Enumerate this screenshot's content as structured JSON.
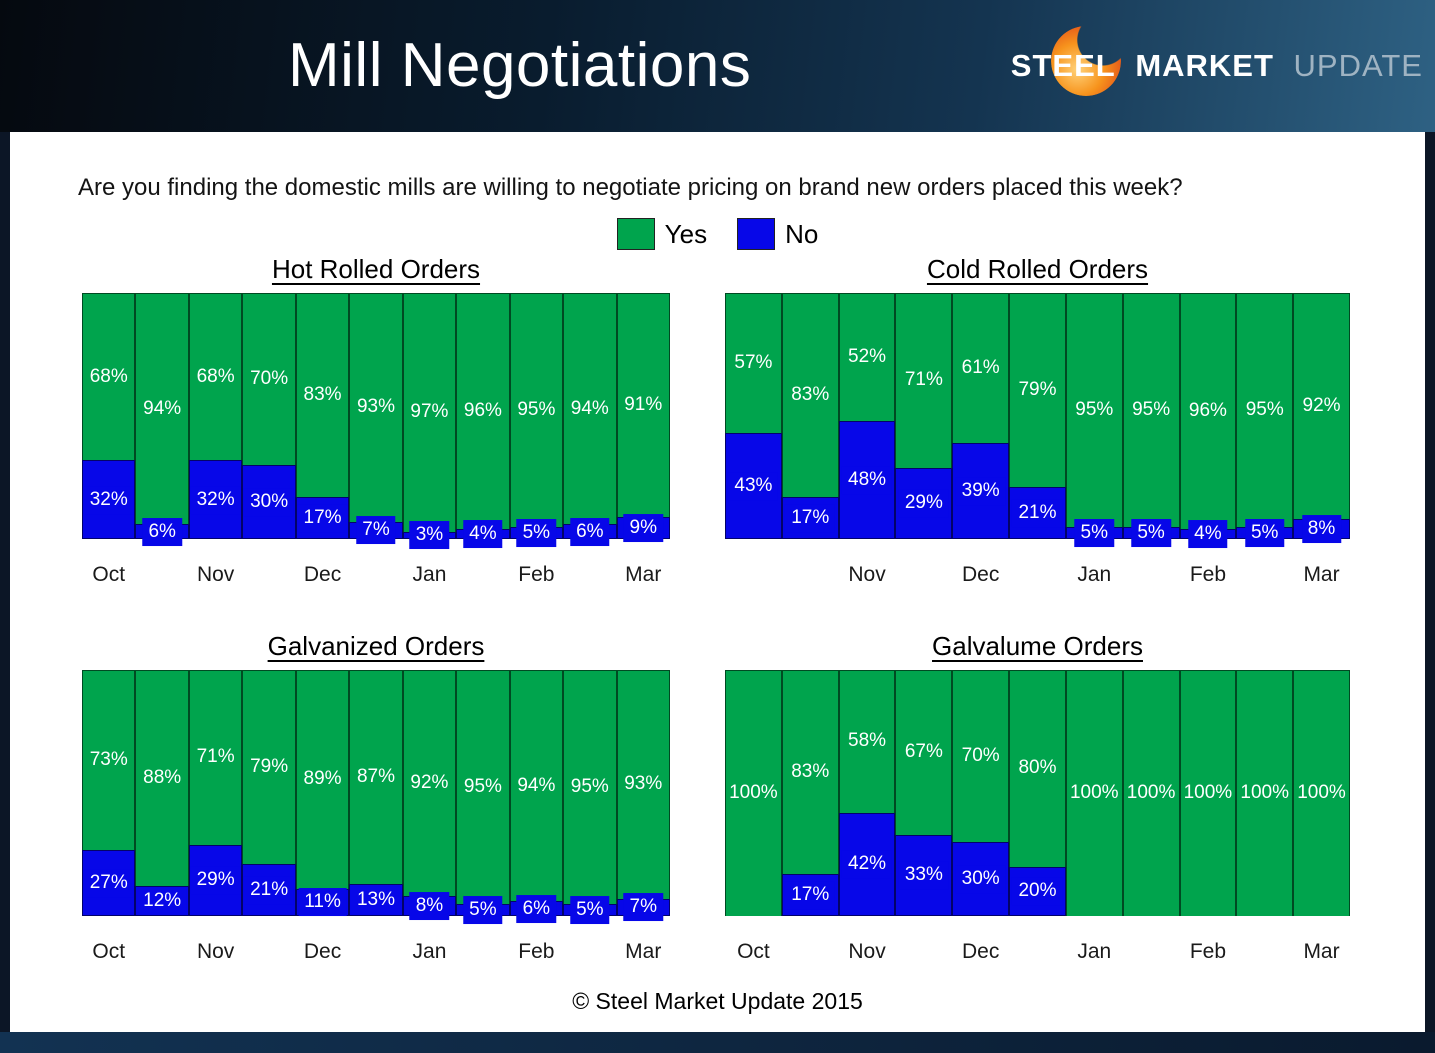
{
  "header": {
    "title": "Mill Negotiations",
    "logo": {
      "steel": "STEEL",
      "market": "MARKET",
      "update": "UPDATE"
    }
  },
  "question": "Are you finding the domestic mills are willing to negotiate pricing on brand new orders placed this week?",
  "legend": {
    "yes_label": "Yes",
    "no_label": "No"
  },
  "colors": {
    "yes": "#00a44d",
    "no": "#0707e8"
  },
  "footer": "© Steel Market Update 2015",
  "chart_data": [
    {
      "type": "bar",
      "stacked": true,
      "title": "Hot Rolled Orders",
      "unit": "%",
      "ylim": [
        0,
        100
      ],
      "grid": false,
      "legend_position": "top-shared",
      "categories": [
        "Oct",
        "",
        "Nov",
        "",
        "Dec",
        "",
        "Jan",
        "",
        "Feb",
        "",
        "Mar"
      ],
      "series": [
        {
          "name": "Yes",
          "color": "#00a44d",
          "values": [
            68,
            94,
            68,
            70,
            83,
            93,
            97,
            96,
            95,
            94,
            91
          ]
        },
        {
          "name": "No",
          "color": "#0707e8",
          "values": [
            32,
            6,
            32,
            30,
            17,
            7,
            3,
            4,
            5,
            6,
            9
          ]
        }
      ]
    },
    {
      "type": "bar",
      "stacked": true,
      "title": "Cold Rolled Orders",
      "unit": "%",
      "ylim": [
        0,
        100
      ],
      "grid": false,
      "legend_position": "top-shared",
      "categories": [
        "",
        "",
        "Nov",
        "",
        "Dec",
        "",
        "Jan",
        "",
        "Feb",
        "",
        "Mar"
      ],
      "series": [
        {
          "name": "Yes",
          "color": "#00a44d",
          "values": [
            57,
            83,
            52,
            71,
            61,
            79,
            95,
            95,
            96,
            95,
            92
          ]
        },
        {
          "name": "No",
          "color": "#0707e8",
          "values": [
            43,
            17,
            48,
            29,
            39,
            21,
            5,
            5,
            4,
            5,
            8
          ]
        }
      ]
    },
    {
      "type": "bar",
      "stacked": true,
      "title": "Galvanized Orders",
      "unit": "%",
      "ylim": [
        0,
        100
      ],
      "grid": false,
      "legend_position": "top-shared",
      "categories": [
        "Oct",
        "",
        "Nov",
        "",
        "Dec",
        "",
        "Jan",
        "",
        "Feb",
        "",
        "Mar"
      ],
      "series": [
        {
          "name": "Yes",
          "color": "#00a44d",
          "values": [
            73,
            88,
            71,
            79,
            89,
            87,
            92,
            95,
            94,
            95,
            93
          ]
        },
        {
          "name": "No",
          "color": "#0707e8",
          "values": [
            27,
            12,
            29,
            21,
            11,
            13,
            8,
            5,
            6,
            5,
            7
          ]
        }
      ]
    },
    {
      "type": "bar",
      "stacked": true,
      "title": "Galvalume Orders",
      "unit": "%",
      "ylim": [
        0,
        100
      ],
      "grid": false,
      "legend_position": "top-shared",
      "categories": [
        "Oct",
        "",
        "Nov",
        "",
        "Dec",
        "",
        "Jan",
        "",
        "Feb",
        "",
        "Mar"
      ],
      "series": [
        {
          "name": "Yes",
          "color": "#00a44d",
          "values": [
            100,
            83,
            58,
            67,
            70,
            80,
            100,
            100,
            100,
            100,
            100
          ]
        },
        {
          "name": "No",
          "color": "#0707e8",
          "values": [
            0,
            17,
            42,
            33,
            30,
            20,
            0,
            0,
            0,
            0,
            0
          ]
        }
      ]
    }
  ]
}
